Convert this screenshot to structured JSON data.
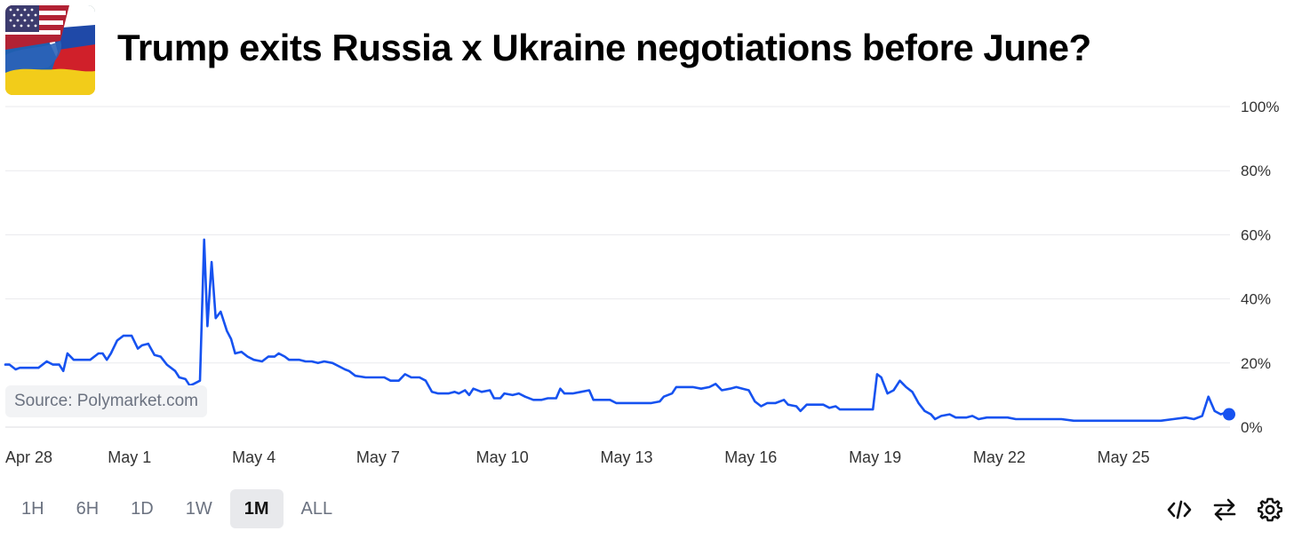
{
  "header": {
    "title": "Trump exits Russia x Ukraine negotiations before June?",
    "thumbnail": "us-russia-ukraine-flags-image"
  },
  "source": {
    "label": "Source: Polymarket.com"
  },
  "range_tabs": [
    {
      "label": "1H",
      "active": false
    },
    {
      "label": "6H",
      "active": false
    },
    {
      "label": "1D",
      "active": false
    },
    {
      "label": "1W",
      "active": false
    },
    {
      "label": "1M",
      "active": true
    },
    {
      "label": "ALL",
      "active": false
    }
  ],
  "toolbar": {
    "icons": [
      "embed-code-icon",
      "swap-arrows-icon",
      "settings-gear-icon"
    ]
  },
  "colors": {
    "line": "#1652f0",
    "grid": "#e9eaed",
    "tab_active_bg": "#e8e9ec"
  },
  "chart_data": {
    "type": "line",
    "title": "",
    "xlabel": "",
    "ylabel": "",
    "ylim": [
      0,
      100
    ],
    "y_ticks": [
      "100%",
      "80%",
      "60%",
      "40%",
      "20%",
      "0%"
    ],
    "y_tick_values": [
      100,
      80,
      60,
      40,
      20,
      0
    ],
    "x_tick_labels": [
      "Apr 28",
      "May 1",
      "May 4",
      "May 7",
      "May 10",
      "May 13",
      "May 16",
      "May 19",
      "May 22",
      "May 25"
    ],
    "x_tick_days": [
      0,
      3,
      6,
      9,
      12,
      15,
      18,
      21,
      24,
      27
    ],
    "grid": true,
    "series": [
      {
        "points": [
          [
            0.0,
            19.5
          ],
          [
            0.1,
            19.5
          ],
          [
            0.25,
            18
          ],
          [
            0.35,
            18.5
          ],
          [
            0.55,
            18.5
          ],
          [
            0.8,
            18.5
          ],
          [
            1.0,
            20.5
          ],
          [
            1.15,
            19.5
          ],
          [
            1.3,
            19.5
          ],
          [
            1.4,
            17.5
          ],
          [
            1.5,
            23
          ],
          [
            1.65,
            21
          ],
          [
            1.85,
            21
          ],
          [
            2.05,
            21
          ],
          [
            2.25,
            23
          ],
          [
            2.35,
            23
          ],
          [
            2.45,
            21
          ],
          [
            2.55,
            23
          ],
          [
            2.7,
            27
          ],
          [
            2.85,
            28.5
          ],
          [
            3.05,
            28.5
          ],
          [
            3.2,
            24.5
          ],
          [
            3.3,
            25.5
          ],
          [
            3.45,
            26
          ],
          [
            3.6,
            22.5
          ],
          [
            3.75,
            22
          ],
          [
            3.9,
            19.5
          ],
          [
            4.1,
            17.5
          ],
          [
            4.2,
            15.5
          ],
          [
            4.35,
            15
          ],
          [
            4.45,
            13
          ],
          [
            4.55,
            13.5
          ],
          [
            4.7,
            14.5
          ],
          [
            4.8,
            58.5
          ],
          [
            4.88,
            31.5
          ],
          [
            4.98,
            51.5
          ],
          [
            5.08,
            34
          ],
          [
            5.2,
            36
          ],
          [
            5.35,
            30
          ],
          [
            5.45,
            27.5
          ],
          [
            5.55,
            23
          ],
          [
            5.7,
            23.5
          ],
          [
            5.85,
            22
          ],
          [
            6.0,
            21
          ],
          [
            6.2,
            20.5
          ],
          [
            6.35,
            22
          ],
          [
            6.5,
            22
          ],
          [
            6.6,
            23
          ],
          [
            6.75,
            22
          ],
          [
            6.85,
            21
          ],
          [
            7.1,
            21
          ],
          [
            7.25,
            20.5
          ],
          [
            7.4,
            20.5
          ],
          [
            7.55,
            20
          ],
          [
            7.7,
            20.5
          ],
          [
            7.9,
            20
          ],
          [
            8.05,
            19
          ],
          [
            8.2,
            18
          ],
          [
            8.3,
            17.5
          ],
          [
            8.45,
            16
          ],
          [
            8.7,
            15.5
          ],
          [
            9.0,
            15.5
          ],
          [
            9.15,
            15.5
          ],
          [
            9.3,
            14.5
          ],
          [
            9.5,
            14.5
          ],
          [
            9.65,
            16.5
          ],
          [
            9.8,
            15.5
          ],
          [
            10.0,
            15.5
          ],
          [
            10.15,
            14.5
          ],
          [
            10.3,
            11
          ],
          [
            10.45,
            10.5
          ],
          [
            10.7,
            10.5
          ],
          [
            10.85,
            11
          ],
          [
            10.95,
            10.5
          ],
          [
            11.1,
            11.5
          ],
          [
            11.2,
            10
          ],
          [
            11.3,
            12
          ],
          [
            11.5,
            11
          ],
          [
            11.7,
            11.5
          ],
          [
            11.8,
            9
          ],
          [
            11.95,
            9
          ],
          [
            12.05,
            10.5
          ],
          [
            12.25,
            10
          ],
          [
            12.4,
            10.5
          ],
          [
            12.55,
            9.5
          ],
          [
            12.75,
            8.5
          ],
          [
            12.95,
            8.5
          ],
          [
            13.1,
            9
          ],
          [
            13.3,
            9
          ],
          [
            13.4,
            12
          ],
          [
            13.5,
            10.5
          ],
          [
            13.7,
            10.5
          ],
          [
            13.9,
            11
          ],
          [
            14.1,
            11.5
          ],
          [
            14.2,
            8.5
          ],
          [
            14.4,
            8.5
          ],
          [
            14.6,
            8.5
          ],
          [
            14.75,
            7.5
          ],
          [
            15.0,
            7.5
          ],
          [
            15.3,
            7.5
          ],
          [
            15.6,
            7.5
          ],
          [
            15.8,
            8
          ],
          [
            15.9,
            9.5
          ],
          [
            16.1,
            10.5
          ],
          [
            16.2,
            12.5
          ],
          [
            16.4,
            12.5
          ],
          [
            16.6,
            12.5
          ],
          [
            16.8,
            12
          ],
          [
            17.0,
            12.5
          ],
          [
            17.15,
            13.5
          ],
          [
            17.3,
            11.5
          ],
          [
            17.5,
            12
          ],
          [
            17.65,
            12.5
          ],
          [
            17.8,
            12
          ],
          [
            17.95,
            11.5
          ],
          [
            18.1,
            8
          ],
          [
            18.25,
            6.5
          ],
          [
            18.4,
            7.5
          ],
          [
            18.6,
            7.5
          ],
          [
            18.8,
            8.5
          ],
          [
            18.9,
            7
          ],
          [
            19.1,
            6.5
          ],
          [
            19.2,
            5
          ],
          [
            19.35,
            7
          ],
          [
            19.55,
            7
          ],
          [
            19.75,
            7
          ],
          [
            19.9,
            6
          ],
          [
            20.05,
            6.5
          ],
          [
            20.15,
            5.5
          ],
          [
            20.4,
            5.5
          ],
          [
            20.7,
            5.5
          ],
          [
            20.95,
            5.5
          ],
          [
            21.05,
            16.5
          ],
          [
            21.15,
            15.5
          ],
          [
            21.3,
            10.5
          ],
          [
            21.45,
            11.5
          ],
          [
            21.6,
            14.5
          ],
          [
            21.75,
            12.5
          ],
          [
            21.9,
            11
          ],
          [
            22.05,
            7.5
          ],
          [
            22.2,
            5
          ],
          [
            22.35,
            4
          ],
          [
            22.45,
            2.5
          ],
          [
            22.6,
            3.5
          ],
          [
            22.8,
            4
          ],
          [
            22.95,
            3
          ],
          [
            23.2,
            3
          ],
          [
            23.35,
            3.5
          ],
          [
            23.5,
            2.5
          ],
          [
            23.7,
            3
          ],
          [
            24.0,
            3
          ],
          [
            24.2,
            3
          ],
          [
            24.4,
            2.5
          ],
          [
            24.8,
            2.5
          ],
          [
            25.2,
            2.5
          ],
          [
            25.5,
            2.5
          ],
          [
            25.8,
            2
          ],
          [
            26.0,
            2
          ],
          [
            26.4,
            2
          ],
          [
            26.8,
            2
          ],
          [
            27.2,
            2
          ],
          [
            27.6,
            2
          ],
          [
            27.9,
            2
          ],
          [
            28.2,
            2.5
          ],
          [
            28.5,
            3
          ],
          [
            28.7,
            2.5
          ],
          [
            28.9,
            3.5
          ],
          [
            29.05,
            9.5
          ],
          [
            29.2,
            5
          ],
          [
            29.35,
            4
          ],
          [
            29.45,
            4.5
          ],
          [
            29.55,
            4
          ]
        ]
      }
    ]
  }
}
